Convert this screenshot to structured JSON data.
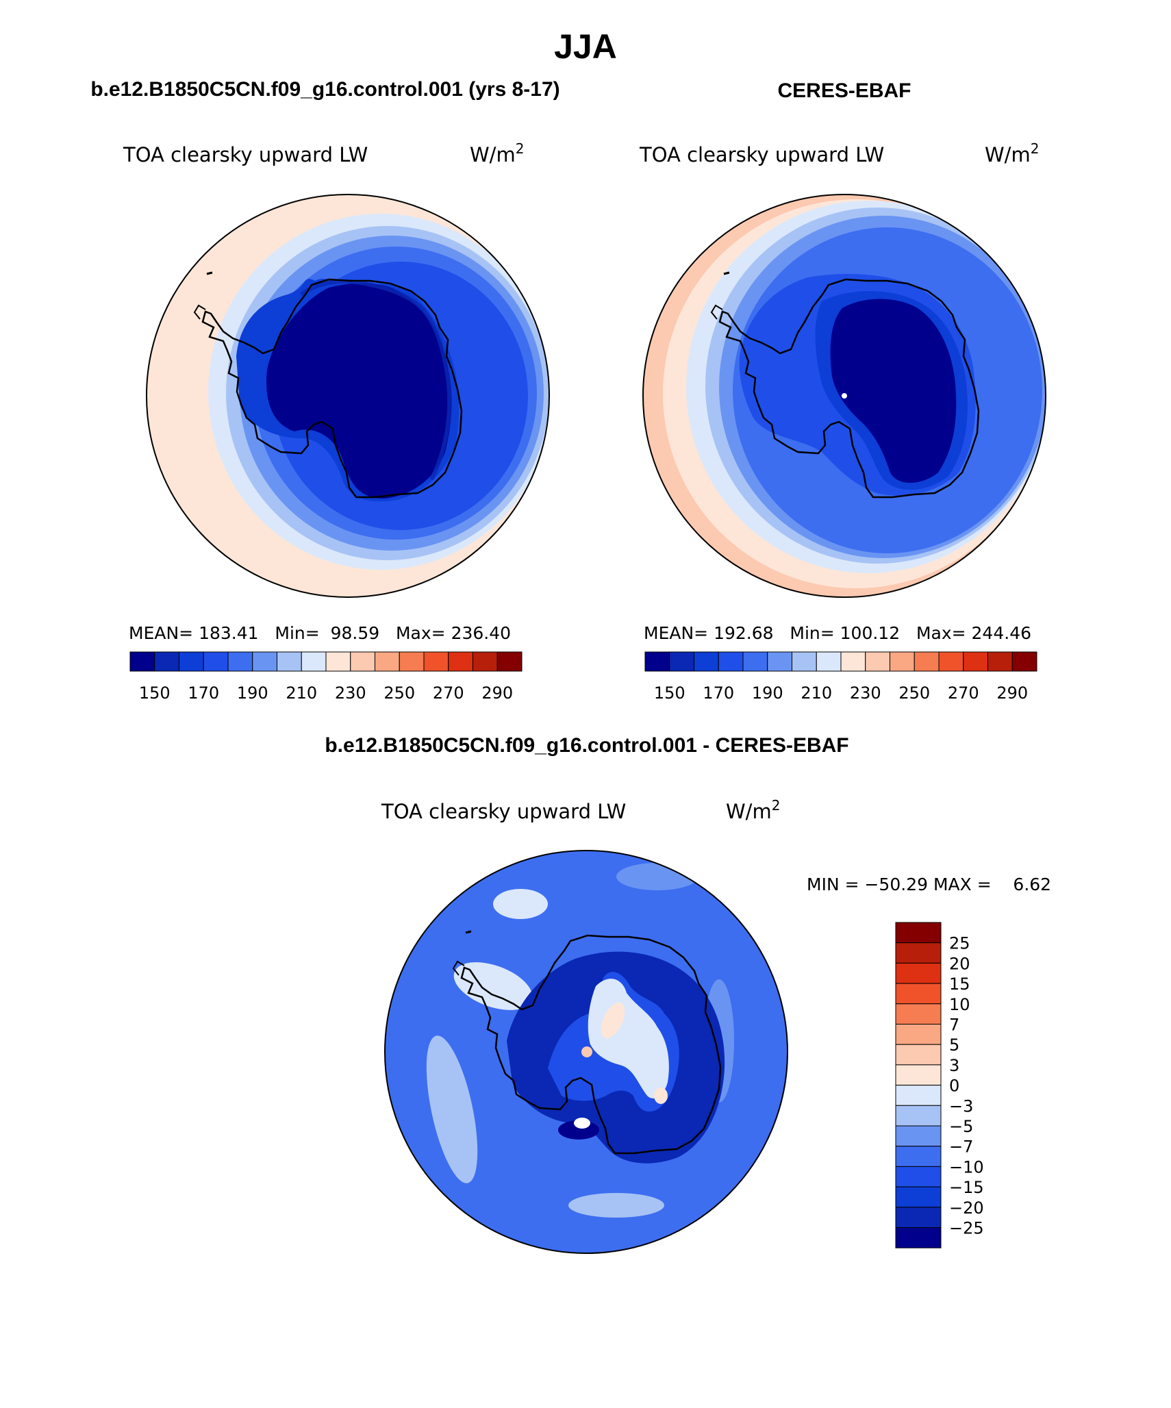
{
  "main_title": "JJA",
  "panels": [
    {
      "id": "model",
      "case_title": "b.e12.B1850C5CN.f09_g16.control.001 (yrs 8-17)",
      "variable": "TOA clearsky upward LW",
      "units": "W/m",
      "units_sup": "2",
      "stats_text": "MEAN= 183.41   Min=  98.59   Max= 236.40",
      "stats": {
        "mean": 183.41,
        "min": 98.59,
        "max": 236.4
      }
    },
    {
      "id": "obs",
      "case_title": "CERES-EBAF",
      "variable": "TOA clearsky upward LW",
      "units": "W/m",
      "units_sup": "2",
      "stats_text": "MEAN= 192.68   Min= 100.12   Max= 244.46",
      "stats": {
        "mean": 192.68,
        "min": 100.12,
        "max": 244.46
      }
    },
    {
      "id": "diff",
      "case_title": "b.e12.B1850C5CN.f09_g16.control.001 - CERES-EBAF",
      "variable": "TOA clearsky upward LW",
      "units": "W/m",
      "units_sup": "2",
      "stats_text": "MIN = −50.29 MAX =    6.62",
      "stats": {
        "min": -50.29,
        "max": 6.62
      }
    }
  ],
  "chart_data": [
    {
      "type": "heatmap",
      "projection": "south polar stereographic",
      "panel": "model",
      "colorbar": {
        "orientation": "horizontal",
        "ticks": [
          "150",
          "170",
          "190",
          "210",
          "230",
          "250",
          "270",
          "290"
        ],
        "levels": [
          140,
          150,
          160,
          170,
          180,
          190,
          200,
          210,
          220,
          230,
          240,
          250,
          260,
          270,
          280,
          290
        ],
        "colors": [
          "#00008c",
          "#0a28b4",
          "#0d3ed6",
          "#1f4fe8",
          "#3d6ef0",
          "#6a94f2",
          "#a7c3f5",
          "#dbe8fb",
          "#fde6d8",
          "#fcc9b1",
          "#f9a883",
          "#f67d52",
          "#f0522a",
          "#de3012",
          "#b81f0b",
          "#840000"
        ]
      }
    },
    {
      "type": "heatmap",
      "projection": "south polar stereographic",
      "panel": "obs",
      "colorbar": {
        "orientation": "horizontal",
        "ticks": [
          "150",
          "170",
          "190",
          "210",
          "230",
          "250",
          "270",
          "290"
        ],
        "levels": [
          140,
          150,
          160,
          170,
          180,
          190,
          200,
          210,
          220,
          230,
          240,
          250,
          260,
          270,
          280,
          290
        ],
        "colors": [
          "#00008c",
          "#0a28b4",
          "#0d3ed6",
          "#1f4fe8",
          "#3d6ef0",
          "#6a94f2",
          "#a7c3f5",
          "#dbe8fb",
          "#fde6d8",
          "#fcc9b1",
          "#f9a883",
          "#f67d52",
          "#f0522a",
          "#de3012",
          "#b81f0b",
          "#840000"
        ]
      }
    },
    {
      "type": "heatmap",
      "projection": "south polar stereographic",
      "panel": "diff",
      "colorbar": {
        "orientation": "vertical",
        "ticks": [
          "25",
          "20",
          "15",
          "10",
          "7",
          "5",
          "3",
          "0",
          "−3",
          "−5",
          "−7",
          "−10",
          "−15",
          "−20",
          "−25"
        ],
        "colors": [
          "#840000",
          "#b81f0b",
          "#de3012",
          "#f0522a",
          "#f67d52",
          "#f9a883",
          "#fcc9b1",
          "#fde6d8",
          "#dbe8fb",
          "#a7c3f5",
          "#6a94f2",
          "#3d6ef0",
          "#1f4fe8",
          "#0d3ed6",
          "#0a28b4",
          "#00008c"
        ]
      }
    }
  ]
}
